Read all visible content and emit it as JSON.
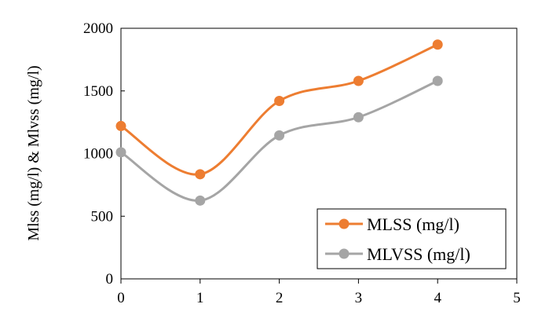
{
  "chart_data": {
    "type": "line",
    "title": "",
    "xlabel": "",
    "ylabel": "Mlss (mg/l) & Mlvss (mg/l)",
    "xlim": [
      0,
      5
    ],
    "ylim": [
      0,
      2000
    ],
    "x_ticks": [
      "0",
      "1",
      "2",
      "3",
      "4",
      "5"
    ],
    "y_ticks": [
      "0",
      "500",
      "1000",
      "1500",
      "2000"
    ],
    "grid": false,
    "smooth": true,
    "legend_position": "bottom-right",
    "x": [
      0,
      1,
      2,
      3,
      4
    ],
    "series": [
      {
        "name": "MLSS (mg/l)",
        "values": [
          1220,
          835,
          1420,
          1580,
          1870
        ],
        "color": "#ED7D31"
      },
      {
        "name": "MLVSS (mg/l)",
        "values": [
          1010,
          625,
          1145,
          1290,
          1580
        ],
        "color": "#A5A5A5"
      }
    ]
  }
}
